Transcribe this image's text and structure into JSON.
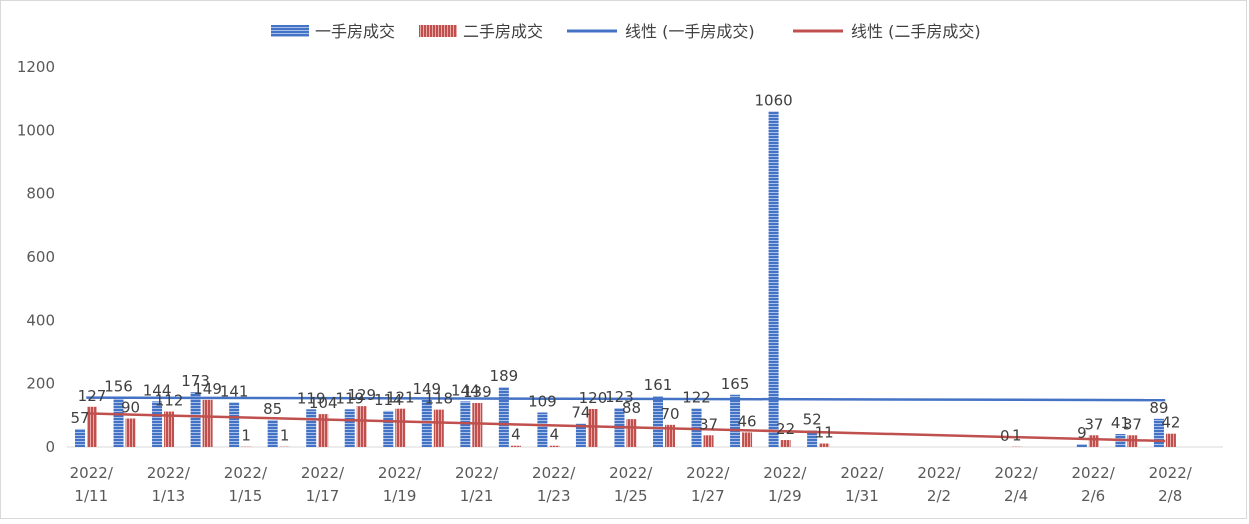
{
  "chart_data": {
    "type": "bar",
    "title": "",
    "xlabel": "",
    "ylabel": "",
    "ylim": [
      0,
      1200
    ],
    "yticks": [
      0,
      200,
      400,
      600,
      800,
      1000,
      1200
    ],
    "grid": false,
    "legend_position": "top",
    "categories": [
      "2022/1/11",
      "2022/1/12",
      "2022/1/13",
      "2022/1/14",
      "2022/1/15",
      "2022/1/16",
      "2022/1/17",
      "2022/1/18",
      "2022/1/19",
      "2022/1/20",
      "2022/1/21",
      "2022/1/22",
      "2022/1/23",
      "2022/1/24",
      "2022/1/25",
      "2022/1/26",
      "2022/1/27",
      "2022/1/28",
      "2022/1/29",
      "2022/1/30",
      "2022/1/31",
      "2022/2/1",
      "2022/2/2",
      "2022/2/3",
      "2022/2/4",
      "2022/2/5",
      "2022/2/6",
      "2022/2/7",
      "2022/2/8",
      "2022/2/9"
    ],
    "tick_labels": [
      {
        "index": 0,
        "line1": "2022/",
        "line2": "1/11"
      },
      {
        "index": 2,
        "line1": "2022/",
        "line2": "1/13"
      },
      {
        "index": 4,
        "line1": "2022/",
        "line2": "1/15"
      },
      {
        "index": 6,
        "line1": "2022/",
        "line2": "1/17"
      },
      {
        "index": 8,
        "line1": "2022/",
        "line2": "1/19"
      },
      {
        "index": 10,
        "line1": "2022/",
        "line2": "1/21"
      },
      {
        "index": 12,
        "line1": "2022/",
        "line2": "1/23"
      },
      {
        "index": 14,
        "line1": "2022/",
        "line2": "1/25"
      },
      {
        "index": 16,
        "line1": "2022/",
        "line2": "1/27"
      },
      {
        "index": 18,
        "line1": "2022/",
        "line2": "1/29"
      },
      {
        "index": 20,
        "line1": "2022/",
        "line2": "1/31"
      },
      {
        "index": 22,
        "line1": "2022/",
        "line2": "2/2"
      },
      {
        "index": 24,
        "line1": "2022/",
        "line2": "2/4"
      },
      {
        "index": 26,
        "line1": "2022/",
        "line2": "2/6"
      },
      {
        "index": 28,
        "line1": "2022/",
        "line2": "2/8"
      }
    ],
    "series": [
      {
        "name": "一手房成交",
        "kind": "bar",
        "color": "#4472c4",
        "values": [
          57,
          156,
          144,
          173,
          141,
          85,
          119,
          119,
          114,
          149,
          144,
          189,
          109,
          74,
          123,
          161,
          122,
          165,
          1060,
          52,
          null,
          null,
          null,
          null,
          0,
          null,
          9,
          41,
          89,
          null
        ]
      },
      {
        "name": "二手房成交",
        "kind": "bar",
        "color": "#c0504d",
        "values": [
          127,
          90,
          112,
          149,
          1,
          1,
          104,
          129,
          121,
          118,
          139,
          4,
          4,
          120,
          88,
          70,
          37,
          46,
          22,
          11,
          null,
          null,
          null,
          null,
          1,
          null,
          37,
          37,
          42,
          null
        ]
      }
    ],
    "trendlines": [
      {
        "name": "线性 (一手房成交)",
        "color": "#4472c4",
        "start": 156,
        "end": 148
      },
      {
        "name": "线性 (二手房成交)",
        "color": "#c0504d",
        "start": 106,
        "end": 19
      }
    ]
  }
}
